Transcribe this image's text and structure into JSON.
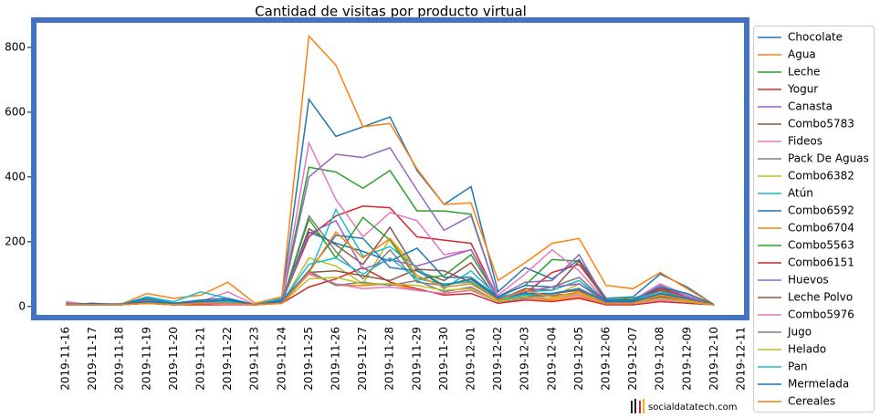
{
  "chart_data": {
    "type": "line",
    "title": "Cantidad de visitas por producto virtual",
    "x": [
      "2019-11-16",
      "2019-11-17",
      "2019-11-18",
      "2019-11-19",
      "2019-11-20",
      "2019-11-21",
      "2019-11-22",
      "2019-11-23",
      "2019-11-24",
      "2019-11-25",
      "2019-11-26",
      "2019-11-27",
      "2019-11-28",
      "2019-11-29",
      "2019-11-30",
      "2019-12-01",
      "2019-12-02",
      "2019-12-03",
      "2019-12-04",
      "2019-12-05",
      "2019-12-06",
      "2019-12-07",
      "2019-12-08",
      "2019-12-09",
      "2019-12-10",
      "2019-12-11"
    ],
    "ylim": [
      -40,
      890
    ],
    "yticks": [
      0,
      200,
      400,
      600,
      800
    ],
    "grid": false,
    "legend": "outside right",
    "watermark": "socialdatatech.com",
    "series": [
      {
        "name": "Chocolate",
        "color": "#1f77b4",
        "values": [
          5,
          8,
          8,
          20,
          10,
          15,
          20,
          5,
          25,
          640,
          525,
          555,
          585,
          420,
          315,
          370,
          45,
          120,
          85,
          145,
          25,
          30,
          100,
          60,
          5,
          null
        ]
      },
      {
        "name": "Agua",
        "color": "#ff7f0e",
        "values": [
          10,
          5,
          5,
          40,
          25,
          35,
          75,
          10,
          30,
          835,
          745,
          555,
          565,
          425,
          315,
          320,
          80,
          135,
          195,
          210,
          65,
          55,
          105,
          55,
          5,
          null
        ]
      },
      {
        "name": "Leche",
        "color": "#2ca02c",
        "values": [
          5,
          5,
          5,
          25,
          10,
          15,
          20,
          5,
          20,
          430,
          415,
          365,
          420,
          295,
          295,
          285,
          30,
          65,
          145,
          140,
          20,
          25,
          55,
          40,
          5,
          null
        ]
      },
      {
        "name": "Yogur",
        "color": "#d62728",
        "values": [
          5,
          5,
          5,
          10,
          5,
          10,
          10,
          5,
          15,
          215,
          280,
          310,
          305,
          215,
          205,
          195,
          25,
          40,
          105,
          130,
          20,
          15,
          55,
          30,
          5,
          null
        ]
      },
      {
        "name": "Canasta",
        "color": "#9467bd",
        "values": [
          10,
          5,
          5,
          20,
          10,
          15,
          20,
          5,
          20,
          400,
          470,
          460,
          490,
          360,
          235,
          280,
          30,
          75,
          80,
          160,
          15,
          20,
          65,
          30,
          5,
          null
        ]
      },
      {
        "name": "Combo5783",
        "color": "#8c564b",
        "values": [
          5,
          5,
          5,
          15,
          10,
          10,
          15,
          5,
          15,
          240,
          190,
          130,
          245,
          110,
          80,
          135,
          20,
          55,
          50,
          140,
          15,
          15,
          50,
          25,
          5,
          null
        ]
      },
      {
        "name": "Fideos",
        "color": "#e377c2",
        "values": [
          15,
          5,
          5,
          20,
          10,
          15,
          45,
          5,
          20,
          505,
          330,
          215,
          290,
          265,
          160,
          175,
          35,
          100,
          175,
          110,
          15,
          20,
          70,
          35,
          5,
          null
        ]
      },
      {
        "name": "Pack De Aguas",
        "color": "#7f7f7f",
        "values": [
          5,
          5,
          5,
          20,
          10,
          15,
          20,
          5,
          15,
          280,
          170,
          85,
          175,
          75,
          65,
          85,
          20,
          45,
          60,
          90,
          15,
          15,
          40,
          25,
          5,
          null
        ]
      },
      {
        "name": "Combo6382",
        "color": "#bcbd22",
        "values": [
          5,
          5,
          5,
          15,
          5,
          10,
          10,
          5,
          10,
          150,
          125,
          70,
          210,
          115,
          65,
          80,
          20,
          50,
          30,
          70,
          10,
          10,
          35,
          25,
          5,
          null
        ]
      },
      {
        "name": "Atún",
        "color": "#17becf",
        "values": [
          5,
          5,
          5,
          30,
          15,
          45,
          25,
          5,
          25,
          100,
          300,
          155,
          185,
          120,
          55,
          110,
          30,
          45,
          50,
          80,
          15,
          20,
          45,
          25,
          5,
          null
        ]
      },
      {
        "name": "Combo6592",
        "color": "#1f77b4",
        "values": [
          5,
          10,
          5,
          25,
          10,
          20,
          25,
          5,
          20,
          230,
          195,
          170,
          140,
          180,
          90,
          90,
          30,
          65,
          60,
          70,
          20,
          20,
          60,
          40,
          5,
          null
        ]
      },
      {
        "name": "Combo6704",
        "color": "#ff7f0e",
        "values": [
          5,
          5,
          5,
          10,
          5,
          10,
          10,
          5,
          15,
          105,
          65,
          65,
          70,
          50,
          40,
          50,
          15,
          25,
          20,
          30,
          10,
          10,
          20,
          15,
          5,
          null
        ]
      },
      {
        "name": "Combo5563",
        "color": "#2ca02c",
        "values": [
          5,
          5,
          5,
          15,
          10,
          10,
          15,
          5,
          15,
          270,
          150,
          275,
          205,
          85,
          95,
          160,
          25,
          40,
          40,
          55,
          10,
          15,
          35,
          25,
          5,
          null
        ]
      },
      {
        "name": "Combo6151",
        "color": "#d62728",
        "values": [
          5,
          5,
          5,
          10,
          5,
          5,
          5,
          5,
          10,
          60,
          85,
          120,
          75,
          55,
          35,
          40,
          10,
          20,
          15,
          25,
          5,
          5,
          15,
          10,
          5,
          null
        ]
      },
      {
        "name": "Huevos",
        "color": "#9467bd",
        "values": [
          5,
          5,
          5,
          15,
          10,
          10,
          15,
          5,
          15,
          225,
          265,
          115,
          145,
          125,
          150,
          175,
          25,
          45,
          60,
          70,
          15,
          15,
          40,
          25,
          5,
          null
        ]
      },
      {
        "name": "Leche Polvo",
        "color": "#8c564b",
        "values": [
          5,
          5,
          5,
          10,
          5,
          10,
          10,
          5,
          10,
          105,
          110,
          95,
          80,
          115,
          110,
          75,
          20,
          30,
          40,
          50,
          10,
          10,
          30,
          20,
          5,
          null
        ]
      },
      {
        "name": "Combo5976",
        "color": "#e377c2",
        "values": [
          5,
          5,
          5,
          10,
          5,
          10,
          5,
          5,
          10,
          100,
          70,
          55,
          60,
          50,
          40,
          50,
          15,
          25,
          25,
          35,
          10,
          10,
          20,
          15,
          5,
          null
        ]
      },
      {
        "name": "Jugo",
        "color": "#7f7f7f",
        "values": [
          5,
          5,
          5,
          10,
          5,
          10,
          10,
          5,
          10,
          110,
          65,
          75,
          65,
          80,
          45,
          60,
          15,
          25,
          35,
          40,
          10,
          10,
          25,
          15,
          5,
          null
        ]
      },
      {
        "name": "Helado",
        "color": "#bcbd22",
        "values": [
          5,
          5,
          5,
          10,
          5,
          10,
          10,
          5,
          10,
          85,
          90,
          70,
          70,
          65,
          50,
          55,
          15,
          30,
          25,
          40,
          10,
          10,
          25,
          15,
          5,
          null
        ]
      },
      {
        "name": "Pan",
        "color": "#17becf",
        "values": [
          5,
          5,
          5,
          15,
          10,
          15,
          15,
          5,
          15,
          130,
          150,
          100,
          150,
          85,
          70,
          75,
          20,
          35,
          40,
          55,
          10,
          15,
          35,
          20,
          5,
          null
        ]
      },
      {
        "name": "Mermelada",
        "color": "#1f77b4",
        "values": [
          5,
          5,
          5,
          15,
          10,
          15,
          20,
          5,
          15,
          110,
          220,
          210,
          120,
          110,
          65,
          85,
          25,
          40,
          40,
          55,
          15,
          15,
          40,
          25,
          5,
          null
        ]
      },
      {
        "name": "Cereales",
        "color": "#ff7f0e",
        "values": [
          5,
          5,
          5,
          10,
          5,
          10,
          10,
          5,
          10,
          105,
          230,
          150,
          210,
          95,
          60,
          70,
          20,
          50,
          30,
          45,
          10,
          10,
          35,
          20,
          5,
          null
        ]
      }
    ]
  }
}
